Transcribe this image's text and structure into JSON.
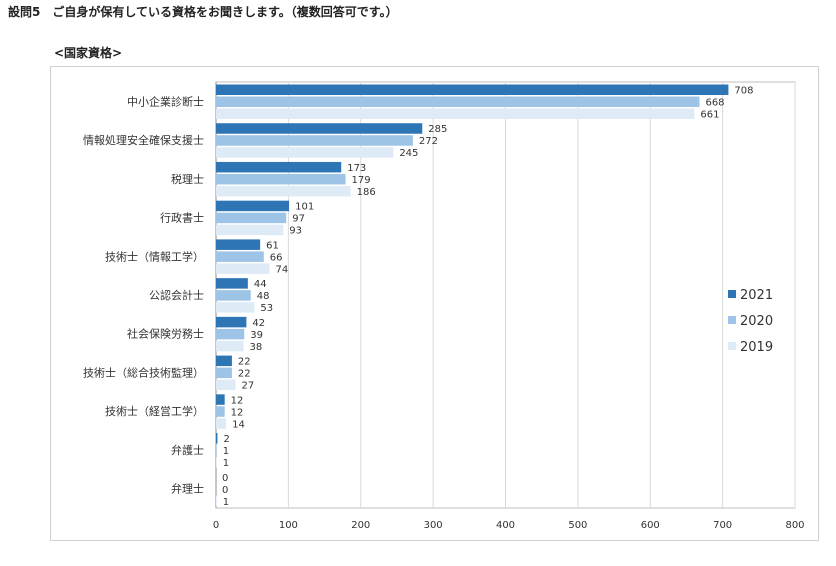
{
  "question": "設問5　ご自身が保有している資格をお聞きします。（複数回答可です。）",
  "subtitle": "<国家資格>",
  "colors": {
    "2021": "#2e75b6",
    "2020": "#9dc3e6",
    "2019": "#deebf7"
  },
  "chart_data": {
    "type": "bar",
    "orientation": "horizontal",
    "categories": [
      "中小企業診断士",
      "情報処理安全確保支援士",
      "税理士",
      "行政書士",
      "技術士（情報工学）",
      "公認会計士",
      "社会保険労務士",
      "技術士（総合技術監理）",
      "技術士（経営工学）",
      "弁護士",
      "弁理士"
    ],
    "series": [
      {
        "name": "2021",
        "values": [
          708,
          285,
          173,
          101,
          61,
          44,
          42,
          22,
          12,
          2,
          0
        ]
      },
      {
        "name": "2020",
        "values": [
          668,
          272,
          179,
          97,
          66,
          48,
          39,
          22,
          12,
          1,
          0
        ]
      },
      {
        "name": "2019",
        "values": [
          661,
          245,
          186,
          93,
          74,
          53,
          38,
          27,
          14,
          1,
          1
        ]
      }
    ],
    "xlim": [
      0,
      800
    ],
    "xticks": [
      0,
      100,
      200,
      300,
      400,
      500,
      600,
      700,
      800
    ],
    "grid": "vertical",
    "legend": "right"
  }
}
